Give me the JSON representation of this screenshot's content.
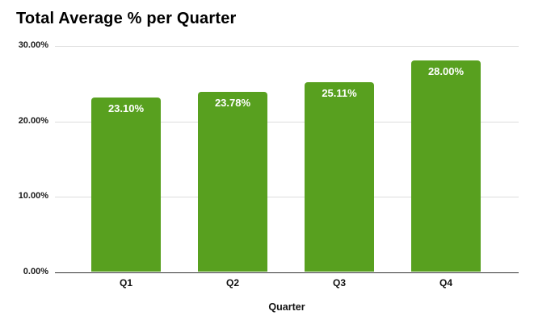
{
  "chart_data": {
    "type": "bar",
    "title": "Total Average % per Quarter",
    "xlabel": "Quarter",
    "ylabel": "",
    "categories": [
      "Q1",
      "Q2",
      "Q3",
      "Q4"
    ],
    "values": [
      23.1,
      23.78,
      25.11,
      28.0
    ],
    "value_labels": [
      "23.10%",
      "23.78%",
      "25.11%",
      "28.00%"
    ],
    "y_ticks": [
      {
        "value": 0,
        "label": "0.00%"
      },
      {
        "value": 10,
        "label": "10.00%"
      },
      {
        "value": 20,
        "label": "20.00%"
      },
      {
        "value": 30,
        "label": "30.00%"
      }
    ],
    "ylim": [
      0,
      30
    ],
    "grid": true,
    "legend": "none",
    "colors": {
      "bar": "#58A01F",
      "bar_label": "#ffffff",
      "gridline": "#dddddd",
      "axis_line": "#333333",
      "text": "#111111"
    }
  }
}
